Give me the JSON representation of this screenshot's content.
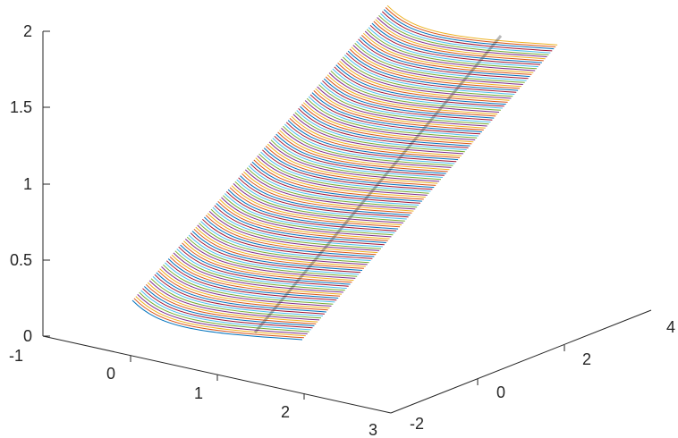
{
  "chart_data": {
    "type": "surface-lines-3d",
    "title": "",
    "xlabel": "",
    "ylabel": "",
    "zlabel": "",
    "xlim": [
      -1,
      3
    ],
    "ylim": [
      -2,
      4
    ],
    "zlim": [
      0,
      2
    ],
    "grid": false,
    "legend": "none",
    "x_ticks": [
      "-1",
      "0",
      "1",
      "2",
      "3"
    ],
    "y_ticks": [
      "-2",
      "0",
      "2",
      "4"
    ],
    "z_ticks": [
      "0",
      "0.5",
      "1",
      "1.5",
      "2"
    ],
    "surface": {
      "u_range": [
        0,
        1
      ],
      "z_range": [
        0,
        2
      ],
      "line_count": 150,
      "note_shape": "tilted sheet with rolled edges; a band of curves rising from z=0 to z=2"
    },
    "colors": {
      "axis": "#262626",
      "series_cycle": [
        "#0072BD",
        "#D95319",
        "#EDB120",
        "#7E2F8E",
        "#77AC30",
        "#4DBEEE",
        "#A2142F"
      ]
    }
  }
}
